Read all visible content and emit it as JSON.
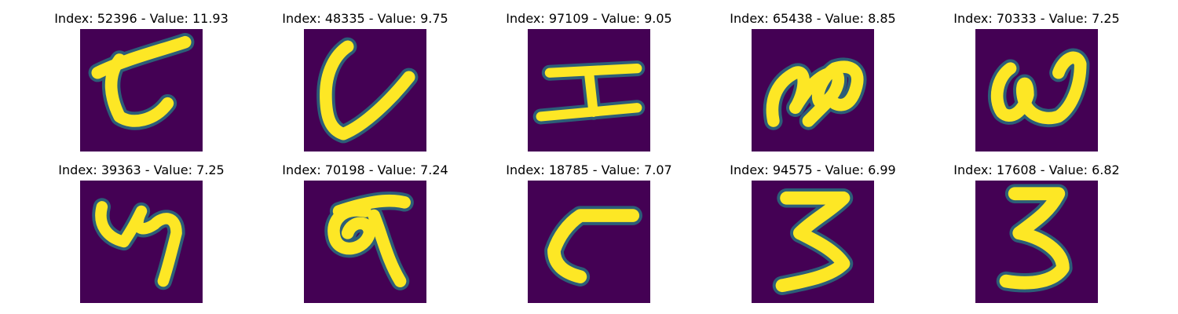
{
  "figure": {
    "background": "#ffffff",
    "colormap": {
      "name": "viridis",
      "low": "#440154",
      "mid_low": "#3b528b",
      "mid": "#21918c",
      "mid_high": "#5ec962",
      "high": "#fde725"
    },
    "items": [
      {
        "title": "Index: 52396 - Value: 11.93",
        "index": 52396,
        "value": 11.93,
        "glyph": "handwritten-glyph-curl"
      },
      {
        "title": "Index: 48335 - Value: 9.75",
        "index": 48335,
        "value": 9.75,
        "glyph": "handwritten-glyph-u-shape"
      },
      {
        "title": "Index: 97109 - Value: 9.05",
        "index": 97109,
        "value": 9.05,
        "glyph": "handwritten-glyph-I-shape"
      },
      {
        "title": "Index: 65438 - Value: 8.85",
        "index": 65438,
        "value": 8.85,
        "glyph": "handwritten-glyph-loops"
      },
      {
        "title": "Index: 70333 - Value: 7.25",
        "index": 70333,
        "value": 7.25,
        "glyph": "handwritten-glyph-w-shape"
      },
      {
        "title": "Index: 39363 - Value: 7.25",
        "index": 39363,
        "value": 7.25,
        "glyph": "handwritten-glyph-four-like"
      },
      {
        "title": "Index: 70198 - Value: 7.24",
        "index": 70198,
        "value": 7.24,
        "glyph": "handwritten-glyph-nine-like"
      },
      {
        "title": "Index: 18785 - Value: 7.07",
        "index": 18785,
        "value": 7.07,
        "glyph": "handwritten-glyph-five-like"
      },
      {
        "title": "Index: 94575 - Value: 6.99",
        "index": 94575,
        "value": 6.99,
        "glyph": "handwritten-glyph-three"
      },
      {
        "title": "Index: 17608 - Value: 6.82",
        "index": 17608,
        "value": 6.82,
        "glyph": "handwritten-glyph-three"
      }
    ]
  }
}
